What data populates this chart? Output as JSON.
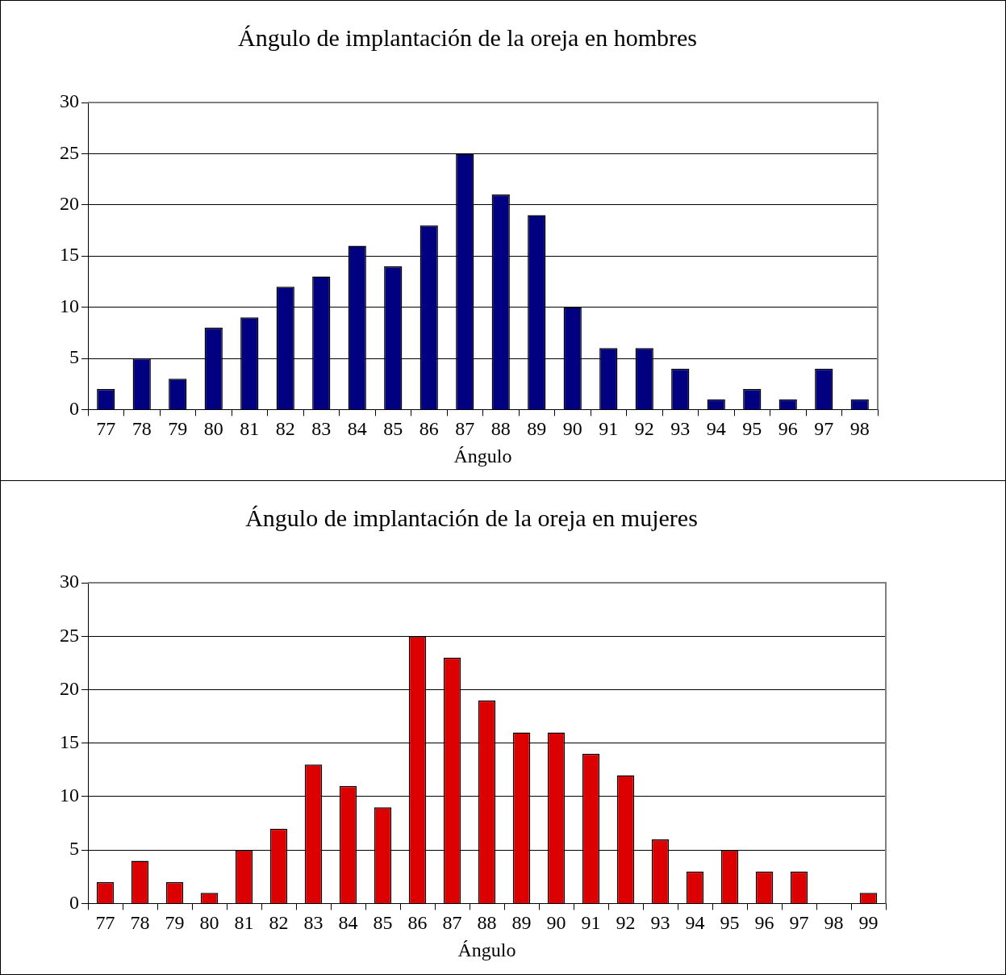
{
  "chart_data": [
    {
      "type": "bar",
      "title": "Ángulo de implantación de la oreja en hombres",
      "xlabel": "Ángulo",
      "categories": [
        "77",
        "78",
        "79",
        "80",
        "81",
        "82",
        "83",
        "84",
        "85",
        "86",
        "87",
        "88",
        "89",
        "90",
        "91",
        "92",
        "93",
        "94",
        "95",
        "96",
        "97",
        "98"
      ],
      "values": [
        2,
        5,
        3,
        8,
        9,
        12,
        13,
        16,
        14,
        18,
        25,
        21,
        19,
        10,
        6,
        6,
        4,
        1,
        2,
        1,
        4,
        1
      ],
      "color": "#000080",
      "ylim": [
        0,
        30
      ],
      "yticks": [
        0,
        5,
        10,
        15,
        20,
        25,
        30
      ],
      "grid": "y",
      "legend": false
    },
    {
      "type": "bar",
      "title": "Ángulo de implantación de la oreja en mujeres",
      "xlabel": "Ángulo",
      "categories": [
        "77",
        "78",
        "79",
        "80",
        "81",
        "82",
        "83",
        "84",
        "85",
        "86",
        "87",
        "88",
        "89",
        "90",
        "91",
        "92",
        "93",
        "94",
        "95",
        "96",
        "97",
        "98",
        "99"
      ],
      "values": [
        2,
        4,
        2,
        1,
        5,
        7,
        13,
        11,
        9,
        25,
        23,
        19,
        16,
        16,
        14,
        12,
        6,
        3,
        5,
        3,
        3,
        0,
        1
      ],
      "color": "#dd0000",
      "ylim": [
        0,
        30
      ],
      "yticks": [
        0,
        5,
        10,
        15,
        20,
        25,
        30
      ],
      "grid": "y",
      "legend": false
    }
  ]
}
